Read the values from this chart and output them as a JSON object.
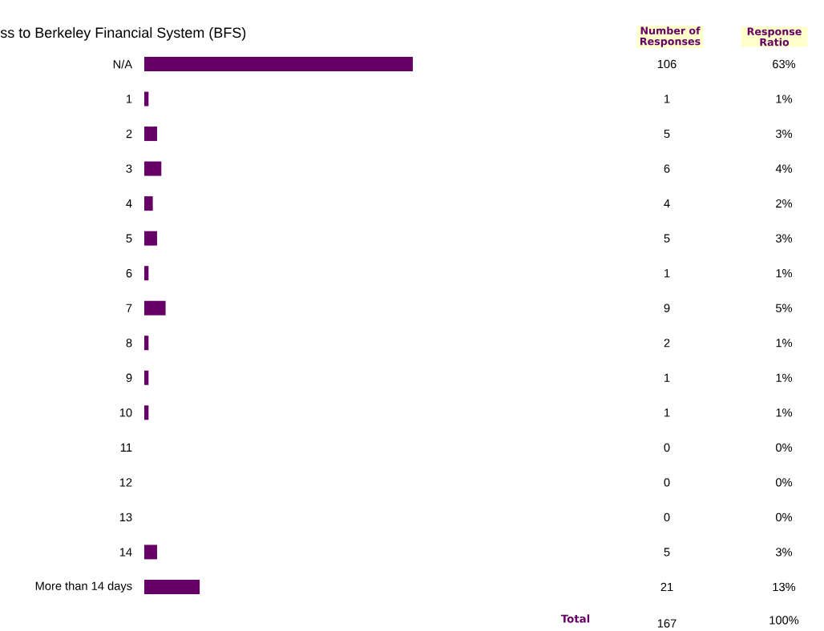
{
  "chart_data": {
    "type": "bar",
    "orientation": "horizontal",
    "title": "ss to Berkeley Financial System (BFS)",
    "categories": [
      "N/A",
      "1",
      "2",
      "3",
      "4",
      "5",
      "6",
      "7",
      "8",
      "9",
      "10",
      "11",
      "12",
      "13",
      "14",
      "More than 14 days"
    ],
    "values": [
      63,
      1,
      3,
      4,
      2,
      3,
      1,
      5,
      1,
      1,
      1,
      0,
      0,
      0,
      3,
      13
    ],
    "value_labels": [
      "63%",
      "1%",
      "3%",
      "4%",
      "2%",
      "3%",
      "1%",
      "5%",
      "1%",
      "1%",
      "1%",
      "0%",
      "0%",
      "0%",
      "3%",
      "13%"
    ],
    "color": "#660066",
    "annotations": [
      "Number of Responses",
      "Response Ratio",
      "106",
      "1",
      "5",
      "6",
      "4",
      "5",
      "1",
      "9",
      "2",
      "1",
      "1",
      "0",
      "0",
      "0",
      "5",
      "21",
      "Total",
      "167",
      "100%"
    ]
  }
}
